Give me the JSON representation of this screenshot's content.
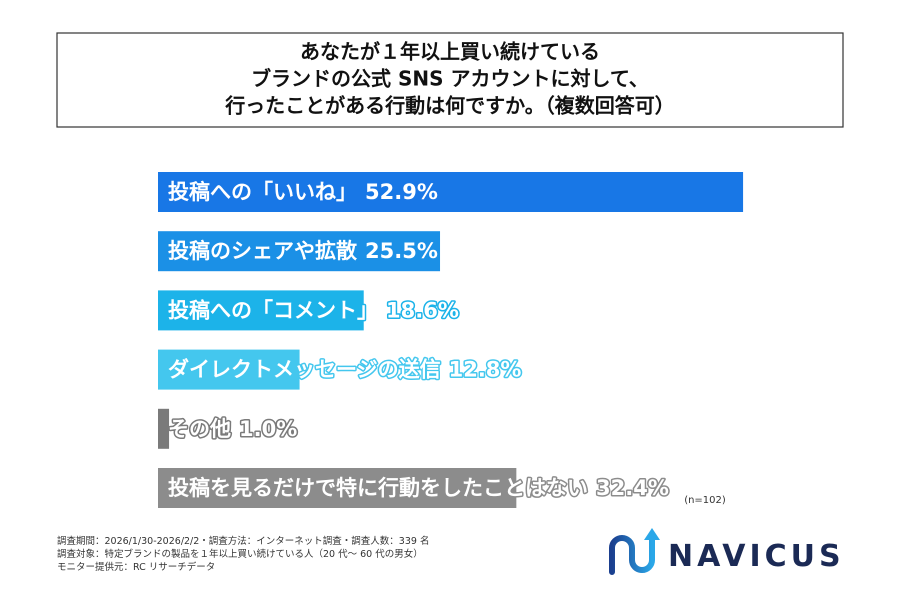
{
  "chart_data": {
    "type": "bar",
    "title": [
      "あなたが１年以上買い続けている",
      "ブランドの公式 SNS アカウントに対して、",
      "行ったことがある行動は何ですか。（複数回答可）"
    ],
    "categories": [
      "投稿への「いいね」",
      "投稿のシェアや拡散",
      "投稿への「コメント」",
      "ダイレクトメッセージの送信",
      "その他",
      "投稿を見るだけで特に行動をしたことはない"
    ],
    "values": [
      52.9,
      25.5,
      18.6,
      12.8,
      1.0,
      32.4
    ],
    "value_labels": [
      "52.9%",
      "25.5%",
      "18.6%",
      "12.8%",
      "1.0%",
      "32.4%"
    ],
    "colors": [
      "#1877e6",
      "#1b90e6",
      "#1cb3e9",
      "#44c7ee",
      "#7a7a7a",
      "#8c8c8c"
    ],
    "annotation": "(n=102)",
    "notes": [
      "調査期間：2026/1/30-2026/2/2・調査方法：インターネット調査・調査人数：339 名",
      "調査対象：特定ブランドの製品を１年以上買い続けている人（20 代〜 60 代の男女）",
      "モニター提供元：RC リサーチデータ"
    ],
    "logo": "NAVICUS"
  }
}
